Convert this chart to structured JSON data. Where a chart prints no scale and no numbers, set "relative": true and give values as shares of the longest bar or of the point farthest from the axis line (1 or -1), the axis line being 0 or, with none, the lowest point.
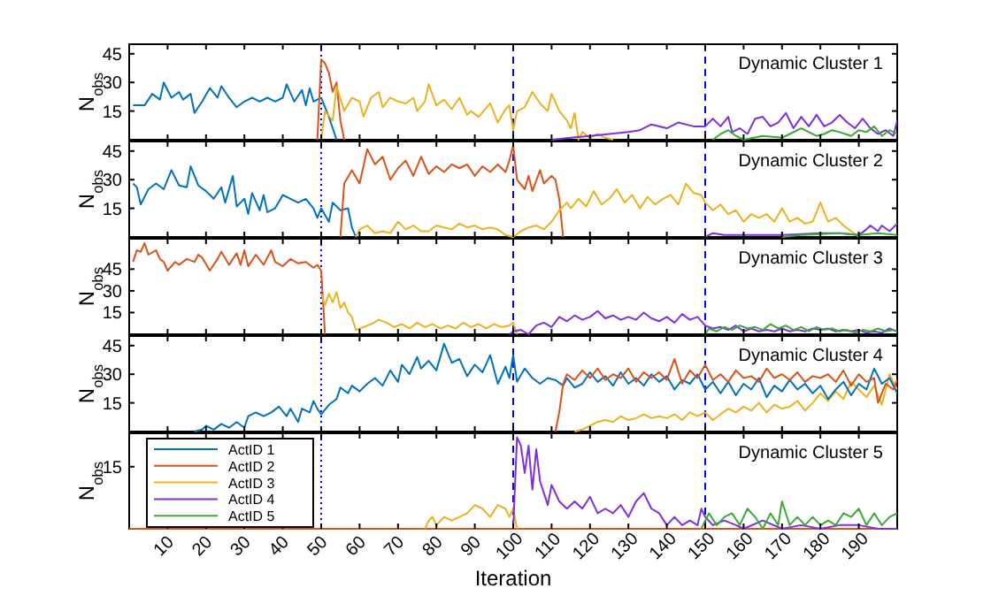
{
  "chart_data": [
    {
      "type": "line",
      "title": "Dynamic Cluster 1",
      "ylabel": "N$_{obs}$",
      "xlim": [
        0,
        200
      ],
      "xticks": [
        10,
        20,
        30,
        40,
        50,
        60,
        70,
        80,
        90,
        100,
        110,
        120,
        130,
        140,
        150,
        160,
        170,
        180,
        190
      ],
      "ylim": [
        0,
        50
      ],
      "yticks": [
        15,
        30,
        45
      ],
      "tick_labels": "y",
      "ref_lines": [
        {
          "axis": "x",
          "value": 50,
          "color": "#0000ff",
          "line_style": "dotted"
        },
        {
          "axis": "x",
          "value": 100,
          "color": "#0000ff",
          "line_style": "dashed"
        },
        {
          "axis": "x",
          "value": 150,
          "color": "#0000ff",
          "line_style": "dashed"
        }
      ],
      "series": [
        {
          "color": "#0072bd",
          "x": [
            1,
            4,
            6,
            8,
            9,
            11,
            13,
            14,
            16,
            17,
            19,
            21,
            23,
            24,
            26,
            28,
            30,
            32,
            34,
            36,
            38,
            40,
            41,
            43,
            45,
            46,
            47,
            48,
            49,
            50,
            52,
            53,
            54
          ],
          "values": [
            18,
            18,
            24,
            21,
            30,
            22,
            25,
            21,
            24,
            14,
            20,
            27,
            22,
            28,
            22,
            17,
            20,
            22,
            20,
            22,
            20,
            22,
            29,
            20,
            26,
            18,
            27,
            20,
            21,
            22,
            12,
            6,
            0
          ]
        },
        {
          "color": "#d95319",
          "x": [
            49,
            50,
            51,
            52,
            53,
            54,
            55,
            56
          ],
          "values": [
            0,
            42,
            40,
            35,
            25,
            30,
            10,
            0
          ]
        },
        {
          "color": "#edb120",
          "x": [
            50,
            51,
            53,
            54,
            56,
            58,
            60,
            61,
            63,
            65,
            66,
            68,
            70,
            72,
            74,
            75,
            77,
            78,
            80,
            82,
            84,
            86,
            88,
            89,
            91,
            94,
            96,
            98,
            99,
            100,
            101,
            103,
            105,
            107,
            109,
            110,
            112,
            114,
            115,
            116,
            117,
            118,
            120,
            122,
            124,
            126
          ],
          "values": [
            0,
            15,
            10,
            28,
            15,
            22,
            20,
            12,
            22,
            25,
            17,
            22,
            20,
            19,
            22,
            15,
            20,
            29,
            18,
            21,
            16,
            22,
            13,
            15,
            12,
            19,
            9,
            16,
            18,
            5,
            15,
            17,
            25,
            19,
            15,
            24,
            15,
            10,
            6,
            14,
            0,
            4,
            1,
            3,
            1,
            0
          ]
        },
        {
          "color": "#7e2fe0",
          "x": [
            110,
            115,
            120,
            125,
            130,
            133,
            136,
            140,
            143,
            147,
            150,
            152,
            154,
            156,
            157,
            159,
            161,
            163,
            165,
            167,
            169,
            171,
            173,
            175,
            177,
            179,
            181,
            183,
            185,
            187,
            189,
            191,
            193,
            195,
            197,
            199,
            200
          ],
          "values": [
            0,
            1,
            2,
            3,
            4,
            5,
            8,
            6,
            9,
            7,
            7,
            11,
            7,
            12,
            4,
            6,
            3,
            11,
            12,
            7,
            9,
            14,
            6,
            12,
            7,
            13,
            7,
            9,
            13,
            9,
            6,
            11,
            6,
            3,
            5,
            2,
            10
          ]
        },
        {
          "color": "#3aaa35",
          "x": [
            152,
            154,
            156,
            158,
            160,
            165,
            170,
            172,
            175,
            177,
            179,
            181,
            183,
            185,
            188,
            190,
            192,
            194,
            196,
            198,
            200
          ],
          "values": [
            0,
            3,
            5,
            2,
            0,
            2,
            1,
            3,
            6,
            4,
            2,
            3,
            5,
            4,
            2,
            5,
            4,
            7,
            2,
            5,
            3
          ]
        }
      ]
    },
    {
      "type": "line",
      "title": "Dynamic Cluster 2",
      "ylabel": "N$_{obs}$",
      "xlim": [
        0,
        200
      ],
      "xticks": [
        10,
        20,
        30,
        40,
        50,
        60,
        70,
        80,
        90,
        100,
        110,
        120,
        130,
        140,
        150,
        160,
        170,
        180,
        190
      ],
      "ylim": [
        0,
        50
      ],
      "yticks": [
        15,
        30,
        45
      ],
      "tick_labels": "y",
      "ref_lines": [
        {
          "axis": "x",
          "value": 50,
          "color": "#0000ff",
          "line_style": "dotted"
        },
        {
          "axis": "x",
          "value": 100,
          "color": "#0000ff",
          "line_style": "dashed"
        },
        {
          "axis": "x",
          "value": 150,
          "color": "#0000ff",
          "line_style": "dashed"
        }
      ],
      "series": [
        {
          "color": "#0072bd",
          "x": [
            1,
            2,
            3,
            5,
            7,
            9,
            11,
            13,
            15,
            16,
            18,
            20,
            22,
            24,
            25,
            27,
            28,
            30,
            31,
            32,
            34,
            35,
            36,
            38,
            40,
            42,
            44,
            46,
            48,
            49,
            50,
            52,
            53,
            55,
            57,
            58,
            59
          ],
          "values": [
            28,
            26,
            17,
            25,
            28,
            25,
            35,
            27,
            26,
            37,
            27,
            24,
            20,
            26,
            18,
            32,
            16,
            20,
            12,
            23,
            14,
            22,
            13,
            15,
            22,
            20,
            18,
            20,
            15,
            10,
            15,
            8,
            18,
            14,
            15,
            5,
            0
          ]
        },
        {
          "color": "#d95319",
          "x": [
            55,
            56,
            58,
            60,
            61,
            62,
            64,
            66,
            68,
            70,
            72,
            74,
            76,
            78,
            80,
            82,
            84,
            86,
            88,
            90,
            92,
            94,
            96,
            98,
            99,
            100,
            101,
            103,
            104,
            105,
            107,
            108,
            110,
            111,
            112,
            113
          ],
          "values": [
            0,
            28,
            35,
            28,
            37,
            46,
            38,
            42,
            30,
            36,
            40,
            32,
            42,
            33,
            37,
            34,
            38,
            36,
            38,
            32,
            37,
            34,
            38,
            34,
            40,
            48,
            30,
            25,
            32,
            24,
            35,
            28,
            32,
            30,
            20,
            0
          ]
        },
        {
          "color": "#edb120",
          "x": [
            59,
            60,
            62,
            64,
            66,
            68,
            70,
            72,
            74,
            76,
            78,
            80,
            82,
            84,
            86,
            88,
            90,
            92,
            94,
            96,
            98,
            100,
            102,
            104,
            106,
            108,
            110,
            112,
            114,
            115,
            117,
            119,
            121,
            123,
            125,
            127,
            129,
            131,
            133,
            135,
            137,
            139,
            141,
            143,
            145,
            147,
            149,
            150,
            152,
            154,
            156,
            158,
            160,
            162,
            164,
            166,
            168,
            170,
            172,
            174,
            176,
            178,
            180,
            182,
            184,
            186,
            188,
            190
          ],
          "values": [
            0,
            4,
            6,
            2,
            3,
            2,
            8,
            4,
            6,
            3,
            3,
            6,
            5,
            4,
            7,
            5,
            6,
            4,
            5,
            4,
            1,
            0,
            3,
            5,
            6,
            4,
            8,
            14,
            18,
            15,
            20,
            16,
            24,
            17,
            20,
            25,
            18,
            22,
            15,
            21,
            17,
            20,
            22,
            17,
            28,
            23,
            22,
            18,
            14,
            17,
            12,
            14,
            8,
            12,
            10,
            12,
            8,
            15,
            8,
            10,
            7,
            8,
            18,
            8,
            10,
            6,
            3,
            0
          ]
        },
        {
          "color": "#7e2fe0",
          "x": [
            150,
            152,
            155,
            160,
            170,
            180,
            185,
            190,
            192,
            193,
            195,
            196,
            198,
            200
          ],
          "values": [
            0,
            2,
            1,
            1,
            1,
            2,
            2,
            1,
            4,
            6,
            3,
            6,
            3,
            7
          ]
        },
        {
          "color": "#3aaa35",
          "x": [
            170,
            175,
            185,
            190,
            195,
            200
          ],
          "values": [
            0,
            1,
            2,
            1,
            2,
            1
          ]
        }
      ]
    },
    {
      "type": "line",
      "title": "Dynamic Cluster 3",
      "ylabel": "N$_{obs}$",
      "xlim": [
        0,
        200
      ],
      "xticks": [
        10,
        20,
        30,
        40,
        50,
        60,
        70,
        80,
        90,
        100,
        110,
        120,
        130,
        140,
        150,
        160,
        170,
        180,
        190
      ],
      "ylim": [
        0,
        66
      ],
      "yticks": [
        15,
        30,
        45
      ],
      "tick_labels": "y",
      "ref_lines": [
        {
          "axis": "x",
          "value": 50,
          "color": "#0000ff",
          "line_style": "dotted"
        },
        {
          "axis": "x",
          "value": 100,
          "color": "#0000ff",
          "line_style": "dashed"
        },
        {
          "axis": "x",
          "value": 150,
          "color": "#0000ff",
          "line_style": "dashed"
        }
      ],
      "series": [
        {
          "color": "#d95319",
          "x": [
            1,
            2,
            3,
            4,
            5,
            7,
            8,
            9,
            10,
            12,
            13,
            15,
            17,
            18,
            19,
            21,
            23,
            24,
            26,
            28,
            29,
            30,
            31,
            33,
            35,
            37,
            38,
            40,
            42,
            44,
            46,
            48,
            49,
            50,
            51
          ],
          "values": [
            50,
            58,
            57,
            63,
            55,
            58,
            52,
            50,
            44,
            50,
            48,
            52,
            50,
            55,
            53,
            44,
            52,
            57,
            48,
            56,
            48,
            58,
            47,
            55,
            48,
            58,
            50,
            47,
            52,
            49,
            50,
            46,
            48,
            44,
            0
          ]
        },
        {
          "color": "#edb120",
          "x": [
            50,
            51,
            52,
            53,
            54,
            55,
            56,
            57,
            58,
            59,
            61,
            63,
            65,
            67,
            69,
            71,
            73,
            75,
            77,
            79,
            81,
            83,
            85,
            87,
            89,
            91,
            93,
            95,
            97,
            99,
            100,
            101
          ],
          "values": [
            28,
            20,
            28,
            22,
            29,
            18,
            22,
            15,
            12,
            3,
            5,
            7,
            10,
            8,
            5,
            7,
            4,
            8,
            5,
            7,
            4,
            6,
            4,
            8,
            5,
            7,
            4,
            7,
            5,
            6,
            8,
            0
          ]
        },
        {
          "color": "#7e2fe0",
          "x": [
            99,
            100,
            102,
            104,
            106,
            108,
            110,
            112,
            114,
            116,
            118,
            120,
            122,
            124,
            126,
            128,
            130,
            132,
            134,
            136,
            138,
            140,
            142,
            144,
            146,
            148,
            150,
            152,
            154,
            156,
            158,
            160,
            162,
            164,
            166,
            168,
            170,
            172,
            174,
            176,
            178,
            180,
            182,
            184,
            186,
            188,
            190,
            192,
            194,
            196,
            198,
            200
          ],
          "values": [
            0,
            2,
            3,
            0,
            6,
            8,
            5,
            12,
            9,
            13,
            10,
            12,
            16,
            11,
            13,
            10,
            12,
            10,
            15,
            11,
            9,
            12,
            8,
            14,
            10,
            12,
            6,
            4,
            5,
            3,
            6,
            2,
            4,
            2,
            3,
            2,
            4,
            2,
            3,
            2,
            4,
            3,
            4,
            2,
            3,
            2,
            3,
            1,
            2,
            1,
            4,
            2
          ]
        },
        {
          "color": "#3aaa35",
          "x": [
            150,
            151,
            153,
            155,
            157,
            159,
            161,
            163,
            165,
            167,
            169,
            171,
            173,
            175,
            177,
            179,
            181,
            183,
            185,
            187,
            189,
            191,
            193,
            195,
            197,
            199,
            200
          ],
          "values": [
            0,
            4,
            2,
            5,
            3,
            6,
            4,
            5,
            3,
            7,
            4,
            6,
            3,
            5,
            2,
            5,
            3,
            4,
            2,
            3,
            1,
            3,
            2,
            4,
            2,
            3,
            2
          ]
        }
      ]
    },
    {
      "type": "line",
      "title": "Dynamic Cluster 4",
      "ylabel": "N$_{obs}$",
      "xlim": [
        0,
        200
      ],
      "xticks": [
        10,
        20,
        30,
        40,
        50,
        60,
        70,
        80,
        90,
        100,
        110,
        120,
        130,
        140,
        150,
        160,
        170,
        180,
        190
      ],
      "ylim": [
        0,
        50
      ],
      "yticks": [
        15,
        30,
        45
      ],
      "tick_labels": "y",
      "ref_lines": [
        {
          "axis": "x",
          "value": 50,
          "color": "#0000ff",
          "line_style": "dotted"
        },
        {
          "axis": "x",
          "value": 100,
          "color": "#0000ff",
          "line_style": "dashed"
        },
        {
          "axis": "x",
          "value": 150,
          "color": "#0000ff",
          "line_style": "dashed"
        }
      ],
      "series": [
        {
          "color": "#edb120",
          "x": [
            116,
            118,
            120,
            122,
            124,
            126,
            128,
            130,
            132,
            134,
            136,
            138,
            140,
            142,
            144,
            146,
            148,
            150,
            152,
            154,
            156,
            158,
            160,
            162,
            164,
            166,
            168,
            170,
            172,
            174,
            176,
            178,
            180,
            182,
            184,
            186,
            188,
            190,
            192,
            194,
            196,
            198,
            200
          ],
          "values": [
            0,
            1,
            3,
            5,
            6,
            5,
            8,
            6,
            7,
            9,
            7,
            8,
            7,
            9,
            6,
            10,
            8,
            10,
            6,
            9,
            12,
            10,
            13,
            11,
            15,
            10,
            14,
            12,
            13,
            16,
            11,
            15,
            20,
            16,
            21,
            17,
            26,
            22,
            18,
            24,
            14,
            30,
            22
          ]
        },
        {
          "color": "#0072bd",
          "x": [
            17,
            19,
            20,
            22,
            24,
            26,
            28,
            30,
            31,
            33,
            35,
            37,
            39,
            41,
            42,
            44,
            45,
            47,
            48,
            49,
            50,
            52,
            54,
            55,
            57,
            58,
            60,
            62,
            64,
            66,
            68,
            70,
            71,
            73,
            75,
            76,
            78,
            80,
            82,
            84,
            86,
            88,
            90,
            92,
            94,
            96,
            98,
            99,
            100,
            101,
            103,
            105,
            107,
            109,
            111,
            113,
            114,
            116,
            118,
            120,
            122,
            124,
            126,
            128,
            130,
            132,
            134,
            136,
            138,
            140,
            142,
            144,
            146,
            148,
            150,
            152,
            154,
            156,
            158,
            160,
            162,
            164,
            166,
            168,
            170,
            172,
            174,
            176,
            178,
            180,
            182,
            184,
            186,
            188,
            190,
            192,
            194,
            196,
            198,
            200
          ],
          "values": [
            0,
            1,
            3,
            1,
            4,
            2,
            5,
            2,
            8,
            10,
            8,
            10,
            13,
            8,
            12,
            5,
            12,
            10,
            16,
            12,
            9,
            14,
            17,
            23,
            20,
            24,
            21,
            25,
            28,
            24,
            32,
            26,
            35,
            30,
            39,
            33,
            37,
            32,
            46,
            36,
            38,
            29,
            35,
            31,
            40,
            25,
            34,
            28,
            40,
            26,
            33,
            28,
            25,
            28,
            27,
            24,
            28,
            23,
            25,
            31,
            26,
            29,
            24,
            31,
            25,
            28,
            24,
            30,
            26,
            29,
            22,
            27,
            25,
            30,
            22,
            26,
            20,
            26,
            19,
            25,
            22,
            28,
            18,
            24,
            21,
            27,
            22,
            25,
            20,
            24,
            17,
            22,
            26,
            19,
            25,
            22,
            33,
            25,
            28,
            20
          ]
        },
        {
          "color": "#d95319",
          "x": [
            111,
            112,
            113,
            114,
            116,
            118,
            120,
            122,
            124,
            126,
            128,
            130,
            132,
            134,
            136,
            138,
            140,
            142,
            144,
            146,
            148,
            150,
            152,
            154,
            156,
            158,
            160,
            162,
            164,
            166,
            168,
            170,
            172,
            174,
            176,
            178,
            180,
            182,
            184,
            186,
            188,
            190,
            192,
            194,
            195,
            197,
            199,
            200
          ],
          "values": [
            0,
            10,
            25,
            30,
            27,
            32,
            28,
            33,
            27,
            30,
            28,
            33,
            26,
            31,
            28,
            31,
            27,
            38,
            25,
            32,
            28,
            35,
            27,
            30,
            26,
            32,
            28,
            29,
            26,
            33,
            28,
            30,
            27,
            31,
            26,
            29,
            28,
            30,
            26,
            32,
            24,
            30,
            26,
            28,
            15,
            25,
            22,
            27
          ]
        }
      ]
    },
    {
      "type": "line",
      "title": "Dynamic Cluster 5",
      "ylabel": "N$_{obs}$",
      "xlabel": "Iteration",
      "xlim": [
        0,
        200
      ],
      "xticks": [
        10,
        20,
        30,
        40,
        50,
        60,
        70,
        80,
        90,
        100,
        110,
        120,
        130,
        140,
        150,
        160,
        170,
        180,
        190
      ],
      "relative": true,
      "annotations": [
        "15"
      ],
      "legend": "bottom left",
      "ref_lines": [
        {
          "axis": "x",
          "value": 50,
          "color": "#0000ff",
          "line_style": "dotted"
        },
        {
          "axis": "x",
          "value": 100,
          "color": "#0000ff",
          "line_style": "dashed"
        },
        {
          "axis": "x",
          "value": 150,
          "color": "#0000ff",
          "line_style": "dashed"
        }
      ],
      "series": [
        {
          "name": "ActID 1",
          "color": "#0072bd"
        },
        {
          "name": "ActID 2",
          "color": "#d95319",
          "x": [
            0,
            200
          ],
          "values": [
            0,
            0
          ]
        },
        {
          "name": "ActID 3",
          "color": "#edb120",
          "x": [
            77,
            78,
            79,
            80,
            82,
            84,
            86,
            88,
            90,
            92,
            94,
            96,
            98,
            99,
            100,
            101
          ],
          "values": [
            0,
            0.09,
            0.13,
            0.04,
            0.13,
            0.09,
            0.13,
            0.17,
            0.26,
            0.22,
            0.13,
            0.26,
            0.22,
            0.13,
            0.22,
            0
          ]
        },
        {
          "name": "ActID 4",
          "color": "#7e2fe0",
          "x": [
            100,
            101,
            102,
            103,
            104,
            105,
            106,
            107,
            108,
            109,
            110,
            112,
            114,
            116,
            118,
            120,
            122,
            124,
            126,
            128,
            130,
            132,
            134,
            136,
            138,
            140,
            142,
            144,
            146,
            148,
            149,
            150,
            152,
            155,
            158,
            160,
            165,
            170,
            175,
            180,
            185,
            190,
            195,
            200
          ],
          "values": [
            0,
            1,
            0.91,
            0.61,
            0.91,
            0.43,
            0.87,
            0.52,
            0.39,
            0.26,
            0.48,
            0.3,
            0.22,
            0.3,
            0.22,
            0.35,
            0.17,
            0.22,
            0.17,
            0.26,
            0.13,
            0.3,
            0.39,
            0.22,
            0.17,
            0.04,
            0.13,
            0.04,
            0.09,
            0.04,
            0.22,
            0.13,
            0.04,
            0.09,
            0.04,
            0,
            0.09,
            0,
            0.04,
            0,
            0.04,
            0.04,
            0,
            0
          ]
        },
        {
          "name": "ActID 5",
          "color": "#3aaa35",
          "x": [
            149,
            150,
            151,
            153,
            155,
            157,
            159,
            161,
            163,
            165,
            167,
            169,
            170,
            172,
            174,
            176,
            178,
            180,
            182,
            184,
            186,
            188,
            190,
            192,
            194,
            196,
            198,
            200
          ],
          "values": [
            0,
            0.09,
            0.17,
            0.04,
            0.13,
            0.17,
            0.04,
            0.22,
            0.13,
            0,
            0.17,
            0.04,
            0.3,
            0.04,
            0.13,
            0.04,
            0.13,
            0.04,
            0.09,
            0.04,
            0.17,
            0.13,
            0.22,
            0.04,
            0.17,
            0.04,
            0.13,
            0.17
          ]
        }
      ]
    }
  ]
}
